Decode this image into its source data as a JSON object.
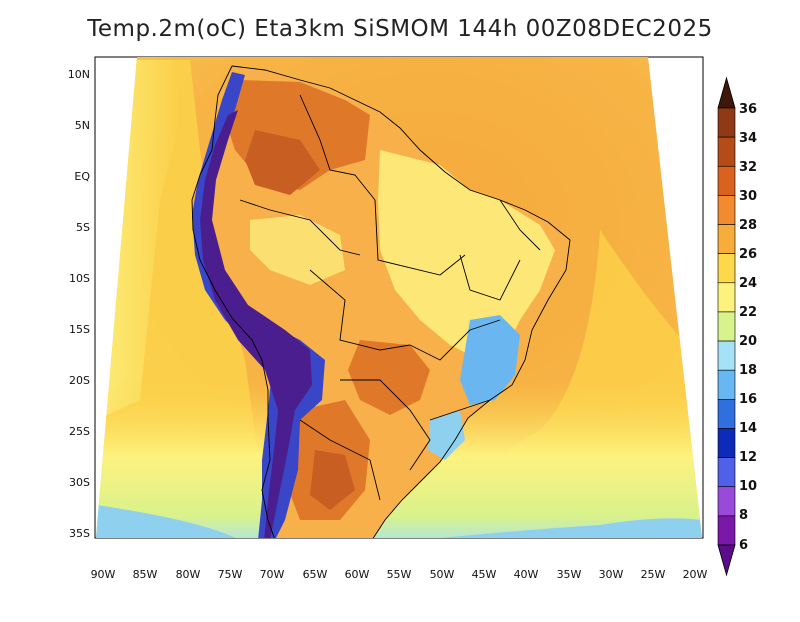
{
  "title": "Temp.2m(oC) Eta3km SiSMOM 144h 00Z08DEC2025",
  "map": {
    "lat_labels": [
      "10N",
      "5N",
      "EQ",
      "5S",
      "10S",
      "15S",
      "20S",
      "25S",
      "30S",
      "35S"
    ],
    "lon_labels": [
      "90W",
      "85W",
      "80W",
      "75W",
      "70W",
      "65W",
      "60W",
      "55W",
      "50W",
      "45W",
      "40W",
      "35W",
      "30W",
      "25W",
      "20W"
    ],
    "colors": {
      "ocean_warm": "#f5a93c",
      "ocean_mid": "#fcd24a",
      "ocean_cool": "#fdf27f",
      "ocean_south": "#d9f28b",
      "cold_ocean": "#8fd0ee",
      "land_hot": "#e0782a",
      "land_hottest": "#c85e22",
      "land_warm": "#f7b04a",
      "land_mild": "#fce777",
      "andes_cold": "#4b1e8f",
      "andes_mid": "#3a46c8",
      "highland_blue": "#6ab6f0",
      "border": "#000000"
    }
  },
  "colorbar": {
    "labels": [
      "36",
      "34",
      "32",
      "30",
      "28",
      "26",
      "24",
      "22",
      "20",
      "18",
      "16",
      "14",
      "12",
      "10",
      "8",
      "6"
    ],
    "colors": [
      "#6b2a10",
      "#8f3a14",
      "#b44c18",
      "#d9621c",
      "#f28a2e",
      "#f7ad3a",
      "#fcd84a",
      "#fdf27c",
      "#d8f28c",
      "#a4e2f7",
      "#66b7f2",
      "#2f6fde",
      "#0b2bb8",
      "#5160e8",
      "#9a4ad8",
      "#7a18a8"
    ],
    "top_arrow_color": "#3d1808",
    "bottom_arrow_color": "#5a0c8a"
  }
}
